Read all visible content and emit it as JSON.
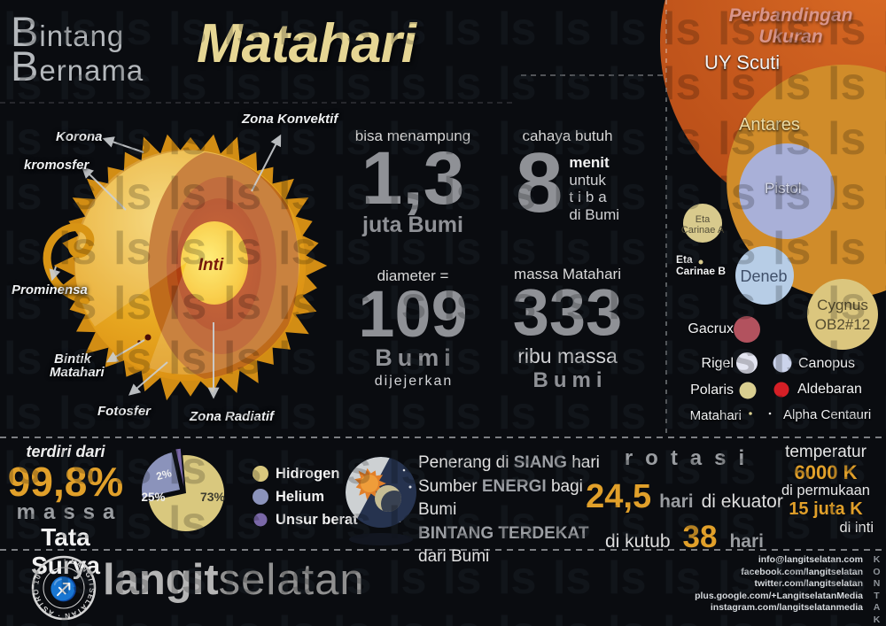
{
  "background": {
    "watermark": "ls"
  },
  "header": {
    "title_top_initial": "B",
    "title_top_rest": "intang",
    "title_bottom_initial": "B",
    "title_bottom_rest": "ernama",
    "title_main": "Matahari"
  },
  "sun": {
    "labels": {
      "korona": "Korona",
      "kromosfer": "kromosfer",
      "prominensa": "Prominensa",
      "bintik_line1": "Bintik",
      "bintik_line2": "Matahari",
      "fotosfer": "Fotosfer",
      "zona_konvektif": "Zona Konvektif",
      "zona_radiatif": "Zona Radiatif",
      "inti": "Inti"
    }
  },
  "stats": {
    "capacity": {
      "label": "bisa menampung",
      "value": "1,3",
      "unit": "juta Bumi"
    },
    "light": {
      "label": "cahaya butuh",
      "value": "8",
      "unit_lines": [
        "menit",
        "untuk",
        "tiba",
        "di Bumi"
      ]
    },
    "diameter": {
      "label": "diameter =",
      "value": "109",
      "unit": "Bumi",
      "sub": "dijejerkan"
    },
    "mass": {
      "label": "massa Matahari",
      "value": "333",
      "unit": "ribu massa",
      "sub": "Bumi"
    }
  },
  "size_comparison": {
    "title": "Perbandingan Ukuran",
    "stars": [
      {
        "label": "UY Scuti",
        "color": "#c7591d"
      },
      {
        "label": "Antares",
        "color": "#d08c2a"
      },
      {
        "label": "Pistol",
        "color": "#a9b0d8"
      },
      {
        "label": "Eta Carinae A",
        "lines": [
          "Eta",
          "Carinae A"
        ],
        "color": "#d8ca8d"
      },
      {
        "label": "Eta Carinae B",
        "lines": [
          "Eta",
          "Carinae B"
        ],
        "color": "#d8ca8d"
      },
      {
        "label": "Deneb",
        "color": "#b7cde6"
      },
      {
        "label": "Cygnus OB2#12",
        "lines": [
          "Cygnus",
          "OB2#12"
        ],
        "color": "#dbc67e"
      },
      {
        "label": "Gacrux",
        "color": "#b2525e"
      },
      {
        "label": "Rigel",
        "color": "#e3e5f1"
      },
      {
        "label": "Canopus",
        "color": "#cbd3eb"
      },
      {
        "label": "Polaris",
        "color": "#d9ce90"
      },
      {
        "label": "Aldebaran",
        "color": "#d51f26"
      },
      {
        "label": "Matahari",
        "color": "#d9ce90"
      },
      {
        "label": "Alpha Centauri",
        "color": "#e8e8e8"
      }
    ]
  },
  "composition": {
    "intro": "terdiri dari",
    "pct": "99,8%",
    "word_massa": "massa",
    "word_tatasurya": "Tata Surya",
    "chart_data": {
      "type": "pie",
      "labels": [
        "Hidrogen",
        "Helium",
        "Unsur berat"
      ],
      "values": [
        73,
        25,
        2
      ],
      "value_labels": [
        "73%",
        "25%",
        "2%"
      ],
      "colors": [
        "#d9c87e",
        "#8b93bb",
        "#7a68a8"
      ],
      "legend_position": "right"
    }
  },
  "facts": {
    "l1a": "Penerang di",
    "l1b": "SIANG",
    "l1c": "hari",
    "l2a": "Sumber",
    "l2b": "ENERGI",
    "l2c": "bagi Bumi",
    "l3": "BINTANG TERDEKAT",
    "l4": "dari Bumi"
  },
  "rotation": {
    "title": "rotasi",
    "equator_value": "24,5",
    "equator_unit": "hari",
    "equator_where": "di ekuator",
    "pole_where": "di kutub",
    "pole_value": "38",
    "pole_unit": "hari"
  },
  "temperature": {
    "title": "temperatur",
    "surface_value": "6000 K",
    "surface_where": "di permukaan",
    "core_value": "15 juta K",
    "core_where": "di inti"
  },
  "footer": {
    "brand_bold": "langit",
    "brand_thin": "selatan",
    "stamp": "· LANGITSELATAN · ASTRO 101 ",
    "kontak": "KONTAK",
    "contacts": [
      "info@langitselatan.com",
      "facebook.com/langitselatan",
      "twitter.com/langitselatan",
      "plus.google.com/+LangitselatanMedia",
      "instagram.com/langitselatanmedia"
    ]
  }
}
